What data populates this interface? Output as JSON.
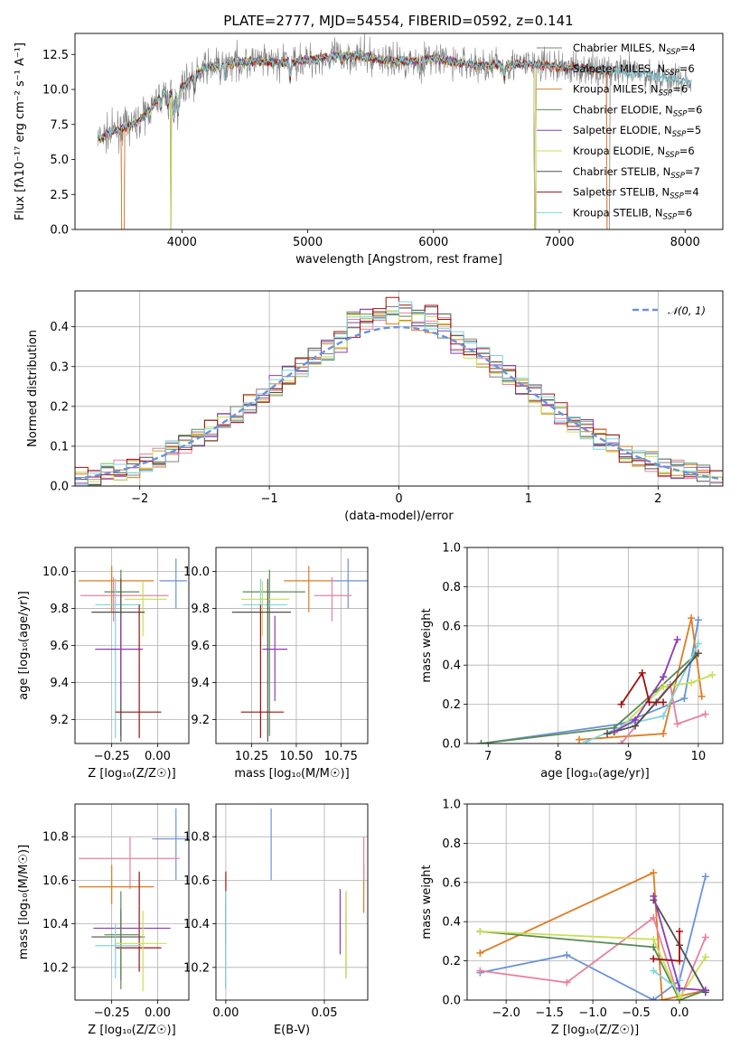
{
  "figure": {
    "title": "PLATE=2777, MJD=54554, FIBERID=0592, z=0.141"
  },
  "colors": {
    "data": "#808080",
    "chabrier_miles": "#808080",
    "salpeter_miles": "#e8819e",
    "kroupa_miles": "#e07b20",
    "chabrier_elodie": "#5a8a55",
    "salpeter_elodie": "#8e3bb5",
    "kroupa_elodie": "#c8e050",
    "chabrier_stelib": "#505050",
    "salpeter_stelib": "#a01010",
    "kroupa_stelib": "#7fd4e0",
    "normal": "#6a93d8"
  },
  "models": [
    {
      "name": "Chabrier MILES",
      "nssp": "4",
      "color": "#808080"
    },
    {
      "name": "Salpeter MILES",
      "nssp": "6",
      "color": "#e8819e"
    },
    {
      "name": "Kroupa MILES",
      "nssp": "6",
      "color": "#e07b20"
    },
    {
      "name": "Chabrier ELODIE",
      "nssp": "6",
      "color": "#5a8a55"
    },
    {
      "name": "Salpeter ELODIE",
      "nssp": "5",
      "color": "#8e3bb5"
    },
    {
      "name": "Kroupa ELODIE",
      "nssp": "6",
      "color": "#c8e050"
    },
    {
      "name": "Chabrier STELIB",
      "nssp": "7",
      "color": "#505050"
    },
    {
      "name": "Salpeter STELIB",
      "nssp": "4",
      "color": "#a01010"
    },
    {
      "name": "Kroupa STELIB",
      "nssp": "6",
      "color": "#7fd4e0"
    }
  ],
  "chart_data": [
    {
      "id": "spectrum",
      "type": "line",
      "xlabel": "wavelength [Angstrom, rest frame]",
      "ylabel": "Flux [fλ10⁻¹⁷ erg cm⁻² s⁻¹ A⁻¹]",
      "xlim": [
        3150,
        8300
      ],
      "ylim": [
        0,
        14
      ],
      "xticks": [
        "4000",
        "5000",
        "6000",
        "7000",
        "8000"
      ],
      "yticks": [
        "0.0",
        "2.5",
        "5.0",
        "7.5",
        "10.0",
        "12.5"
      ],
      "grid": false,
      "legend": "right",
      "continuum_anchors": [
        [
          3350,
          6.5
        ],
        [
          3450,
          7.0
        ],
        [
          3550,
          7.3
        ],
        [
          3650,
          7.7
        ],
        [
          3750,
          8.6
        ],
        [
          3850,
          9.8
        ],
        [
          3950,
          9.6
        ],
        [
          4050,
          10.6
        ],
        [
          4200,
          11.6
        ],
        [
          4400,
          11.9
        ],
        [
          4600,
          12.0
        ],
        [
          4800,
          11.9
        ],
        [
          5000,
          12.1
        ],
        [
          5200,
          12.4
        ],
        [
          5400,
          12.4
        ],
        [
          5600,
          12.1
        ],
        [
          5800,
          12.0
        ],
        [
          6000,
          12.2
        ],
        [
          6200,
          11.9
        ],
        [
          6400,
          11.7
        ],
        [
          6600,
          11.8
        ],
        [
          6800,
          11.8
        ],
        [
          7000,
          11.6
        ],
        [
          7200,
          11.5
        ],
        [
          7400,
          11.3
        ],
        [
          7600,
          11.2
        ],
        [
          7800,
          10.9
        ],
        [
          8000,
          10.6
        ],
        [
          8050,
          10.5
        ]
      ],
      "model_ends": [
        8050,
        7380,
        7400,
        7400,
        7400,
        7400,
        7400,
        7400,
        8050
      ],
      "model_drops": [
        [
          3520,
          3540,
          6800,
          6810,
          7380,
          7400
        ],
        [
          3520,
          3540,
          6800,
          6810,
          7380,
          7400
        ],
        [
          3520,
          3540,
          6800,
          6810,
          7380,
          7400
        ],
        [
          3910,
          3915,
          6800,
          6810
        ],
        [
          3910,
          3915,
          6800,
          6810
        ],
        [
          3910,
          3915,
          6800,
          6810
        ],
        [],
        [],
        []
      ]
    },
    {
      "id": "residuals",
      "type": "histogram",
      "xlabel": "(data-model)/error",
      "ylabel": "Normed distribution",
      "xlim": [
        -2.5,
        2.5
      ],
      "ylim": [
        0,
        0.49
      ],
      "xticks": [
        "−2",
        "−1",
        "0",
        "1",
        "2"
      ],
      "yticks": [
        "0.0",
        "0.1",
        "0.2",
        "0.3",
        "0.4"
      ],
      "grid": true,
      "bin_width": 0.1,
      "legend": "top-right",
      "normal_label": "𝒩(0, 1)"
    },
    {
      "id": "age_vs_Z",
      "type": "errorbar",
      "xlabel": "Z [log₁₀(Z/Z☉)]",
      "ylabel": "age  [log₁₀(age/yr)]",
      "xlim": [
        -0.45,
        0.17
      ],
      "ylim": [
        9.07,
        10.13
      ],
      "xticks": [
        "−0.25",
        "0.00"
      ],
      "yticks": [
        "9.2",
        "9.4",
        "9.6",
        "9.8",
        "10.0"
      ],
      "points": [
        {
          "c": "#6a93d8",
          "x": 0.1,
          "xe": [
            0.09,
            0.06
          ],
          "y": 9.95,
          "ye": [
            0.15,
            0.12
          ]
        },
        {
          "c": "#e07b20",
          "x": -0.25,
          "xe": [
            0.18,
            0.23
          ],
          "y": 9.95,
          "ye": [
            0.17,
            0.08
          ]
        },
        {
          "c": "#e8819e",
          "x": -0.24,
          "xe": [
            0.18,
            0.3
          ],
          "y": 9.87,
          "ye": [
            0.14,
            0.1
          ]
        },
        {
          "c": "#5a8a55",
          "x": -0.2,
          "xe": [
            0.09,
            0.1
          ],
          "y": 9.89,
          "ye": [
            0.78,
            0.12
          ]
        },
        {
          "c": "#c8e050",
          "x": -0.08,
          "xe": [
            0.1,
            0.13
          ],
          "y": 9.85,
          "ye": [
            0.2,
            0.1
          ]
        },
        {
          "c": "#7fd4e0",
          "x": -0.23,
          "xe": [
            0.11,
            0.14
          ],
          "y": 9.82,
          "ye": [
            0.72,
            0.14
          ]
        },
        {
          "c": "#505050",
          "x": -0.2,
          "xe": [
            0.16,
            0.13
          ],
          "y": 9.78,
          "ye": [
            0.7,
            0.18
          ]
        },
        {
          "c": "#8e3bb5",
          "x": -0.2,
          "xe": [
            0.14,
            0.12
          ],
          "y": 9.58,
          "ye": [
            0.28,
            0.18
          ]
        },
        {
          "c": "#a01010",
          "x": -0.1,
          "xe": [
            0.13,
            0.12
          ],
          "y": 9.24,
          "ye": [
            0.14,
            0.58
          ]
        }
      ]
    },
    {
      "id": "age_vs_mass",
      "type": "errorbar",
      "xlabel": "mass [log₁₀(M/M☉)]",
      "ylabel": "",
      "xlim": [
        10.05,
        10.9
      ],
      "ylim": [
        9.07,
        10.13
      ],
      "xticks": [
        "10.25",
        "10.50",
        "10.75"
      ],
      "yticks": [
        "9.2",
        "9.4",
        "9.6",
        "9.8",
        "10.0"
      ],
      "points": [
        {
          "c": "#6a93d8",
          "x": 10.79,
          "xe": [
            0.1,
            0.13
          ],
          "y": 9.95,
          "ye": [
            0.15,
            0.12
          ]
        },
        {
          "c": "#e07b20",
          "x": 10.57,
          "xe": [
            0.14,
            0.13
          ],
          "y": 9.95,
          "ye": [
            0.17,
            0.08
          ]
        },
        {
          "c": "#e8819e",
          "x": 10.7,
          "xe": [
            0.1,
            0.11
          ],
          "y": 9.87,
          "ye": [
            0.14,
            0.1
          ]
        },
        {
          "c": "#5a8a55",
          "x": 10.35,
          "xe": [
            0.15,
            0.2
          ],
          "y": 9.89,
          "ye": [
            0.78,
            0.12
          ]
        },
        {
          "c": "#c8e050",
          "x": 10.31,
          "xe": [
            0.12,
            0.15
          ],
          "y": 9.85,
          "ye": [
            0.2,
            0.1
          ]
        },
        {
          "c": "#7fd4e0",
          "x": 10.3,
          "xe": [
            0.1,
            0.15
          ],
          "y": 9.82,
          "ye": [
            0.72,
            0.14
          ]
        },
        {
          "c": "#505050",
          "x": 10.34,
          "xe": [
            0.2,
            0.13
          ],
          "y": 9.78,
          "ye": [
            0.7,
            0.18
          ]
        },
        {
          "c": "#8e3bb5",
          "x": 10.38,
          "xe": [
            0.07,
            0.07
          ],
          "y": 9.58,
          "ye": [
            0.28,
            0.18
          ]
        },
        {
          "c": "#a01010",
          "x": 10.3,
          "xe": [
            0.11,
            0.13
          ],
          "y": 9.24,
          "ye": [
            0.14,
            0.58
          ]
        }
      ]
    },
    {
      "id": "weight_vs_age",
      "type": "line",
      "xlabel": "age  [log₁₀(age/yr)]",
      "ylabel": "mass weight",
      "xlim": [
        6.7,
        10.35
      ],
      "ylim": [
        0,
        1
      ],
      "xticks": [
        "7",
        "8",
        "9",
        "10"
      ],
      "yticks": [
        "0.0",
        "0.2",
        "0.4",
        "0.6",
        "0.8",
        "1.0"
      ],
      "grid": true,
      "series": [
        {
          "c": "#6a93d8",
          "x": [
            6.9,
            8.9,
            9.8,
            10.0
          ],
          "y": [
            0.0,
            0.1,
            0.23,
            0.63
          ]
        },
        {
          "c": "#e07b20",
          "x": [
            8.3,
            9.5,
            9.9,
            10.05
          ],
          "y": [
            0.02,
            0.05,
            0.64,
            0.24
          ]
        },
        {
          "c": "#e8819e",
          "x": [
            8.9,
            9.6,
            9.7,
            10.1
          ],
          "y": [
            0.0,
            0.3,
            0.1,
            0.15
          ]
        },
        {
          "c": "#5a8a55",
          "x": [
            6.9,
            8.8,
            9.4,
            9.95
          ],
          "y": [
            0.0,
            0.08,
            0.27,
            0.45
          ]
        },
        {
          "c": "#c8e050",
          "x": [
            8.8,
            9.5,
            9.9,
            10.2
          ],
          "y": [
            0.05,
            0.29,
            0.31,
            0.35
          ]
        },
        {
          "c": "#7fd4e0",
          "x": [
            8.4,
            9.0,
            9.5,
            10.0
          ],
          "y": [
            0.01,
            0.1,
            0.14,
            0.51
          ]
        },
        {
          "c": "#505050",
          "x": [
            8.7,
            9.1,
            9.4,
            10.0
          ],
          "y": [
            0.05,
            0.09,
            0.21,
            0.46
          ]
        },
        {
          "c": "#8e3bb5",
          "x": [
            8.8,
            9.1,
            9.5,
            9.7
          ],
          "y": [
            0.06,
            0.12,
            0.34,
            0.53
          ]
        },
        {
          "c": "#a01010",
          "x": [
            8.9,
            9.2,
            9.3,
            9.5
          ],
          "y": [
            0.2,
            0.36,
            0.21,
            0.21
          ]
        }
      ]
    },
    {
      "id": "mass_vs_Z",
      "type": "errorbar",
      "xlabel": "Z [log₁₀(Z/Z☉)]",
      "ylabel": "mass [log₁₀(M/M☉)]",
      "xlim": [
        -0.45,
        0.17
      ],
      "ylim": [
        10.05,
        10.95
      ],
      "xticks": [
        "−0.25",
        "0.00"
      ],
      "yticks": [
        "10.2",
        "10.4",
        "10.6",
        "10.8"
      ],
      "points": [
        {
          "c": "#6a93d8",
          "x": 0.1,
          "xe": [
            0.13,
            0.16
          ],
          "y": 10.79,
          "ye": [
            0.19,
            0.14
          ]
        },
        {
          "c": "#e8819e",
          "x": -0.15,
          "xe": [
            0.28,
            0.27
          ],
          "y": 10.7,
          "ye": [
            0.14,
            0.1
          ]
        },
        {
          "c": "#e07b20",
          "x": -0.25,
          "xe": [
            0.18,
            0.23
          ],
          "y": 10.57,
          "ye": [
            0.08,
            0.1
          ]
        },
        {
          "c": "#a01010",
          "x": -0.1,
          "xe": [
            0.13,
            0.12
          ],
          "y": 10.29,
          "ye": [
            0.11,
            0.35
          ]
        },
        {
          "c": "#8e3bb5",
          "x": -0.2,
          "xe": [
            0.15,
            0.27
          ],
          "y": 10.38,
          "ye": [
            0.07,
            0.07
          ]
        },
        {
          "c": "#505050",
          "x": -0.2,
          "xe": [
            0.16,
            0.13
          ],
          "y": 10.34,
          "ye": [
            0.2,
            0.13
          ]
        },
        {
          "c": "#5a8a55",
          "x": -0.2,
          "xe": [
            0.09,
            0.1
          ],
          "y": 10.35,
          "ye": [
            0.25,
            0.2
          ]
        },
        {
          "c": "#7fd4e0",
          "x": -0.23,
          "xe": [
            0.11,
            0.14
          ],
          "y": 10.3,
          "ye": [
            0.15,
            0.1
          ]
        },
        {
          "c": "#c8e050",
          "x": -0.08,
          "xe": [
            0.15,
            0.13
          ],
          "y": 10.31,
          "ye": [
            0.22,
            0.15
          ]
        }
      ]
    },
    {
      "id": "mass_vs_ebv",
      "type": "errorbar",
      "xlabel": "E(B-V)",
      "ylabel": "",
      "xlim": [
        -0.005,
        0.072
      ],
      "ylim": [
        10.05,
        10.95
      ],
      "xticks": [
        "0.00",
        "0.05"
      ],
      "yticks": [
        "10.2",
        "10.4",
        "10.6",
        "10.8"
      ],
      "points": [
        {
          "c": "#6a93d8",
          "x": 0.023,
          "xe": [
            0,
            0
          ],
          "y": 10.76,
          "ye": [
            0.16,
            0.17
          ]
        },
        {
          "c": "#e07b20",
          "x": 0.07,
          "xe": [
            0,
            0
          ],
          "y": 10.57,
          "ye": [
            0.12,
            0.1
          ]
        },
        {
          "c": "#e8819e",
          "x": 0.07,
          "xe": [
            0,
            0
          ],
          "y": 10.7,
          "ye": [
            0.1,
            0.1
          ]
        },
        {
          "c": "#a01010",
          "x": 0.0,
          "xe": [
            0,
            0
          ],
          "y": 10.5,
          "ye": [
            0.2,
            0.14
          ]
        },
        {
          "c": "#505050",
          "x": 0.0,
          "xe": [
            0,
            0
          ],
          "y": 10.3,
          "ye": [
            0.2,
            0.2
          ]
        },
        {
          "c": "#7fd4e0",
          "x": 0.0,
          "xe": [
            0,
            0
          ],
          "y": 10.3,
          "ye": [
            0.2,
            0.25
          ]
        },
        {
          "c": "#8e3bb5",
          "x": 0.058,
          "xe": [
            0,
            0
          ],
          "y": 10.41,
          "ye": [
            0.15,
            0.15
          ]
        },
        {
          "c": "#5a8a55",
          "x": 0.061,
          "xe": [
            0,
            0
          ],
          "y": 10.35,
          "ye": [
            0.2,
            0.2
          ]
        },
        {
          "c": "#c8e050",
          "x": 0.061,
          "xe": [
            0,
            0
          ],
          "y": 10.35,
          "ye": [
            0.2,
            0.2
          ]
        }
      ]
    },
    {
      "id": "weight_vs_Z",
      "type": "line",
      "xlabel": "Z [log₁₀(Z/Z☉)]",
      "ylabel": "mass weight",
      "xlim": [
        -2.45,
        0.5
      ],
      "ylim": [
        0,
        1
      ],
      "xticks": [
        "−2.0",
        "−1.5",
        "−1.0",
        "−0.5",
        "0.0"
      ],
      "yticks": [
        "0.0",
        "0.2",
        "0.4",
        "0.6",
        "0.8",
        "1.0"
      ],
      "grid": true,
      "series": [
        {
          "c": "#6a93d8",
          "x": [
            -2.3,
            -1.3,
            -0.3,
            0.0,
            0.3
          ],
          "y": [
            0.14,
            0.23,
            0.0,
            0.1,
            0.63
          ]
        },
        {
          "c": "#e07b20",
          "x": [
            -2.3,
            -0.3,
            -0.2,
            0.3
          ],
          "y": [
            0.24,
            0.65,
            0.0,
            0.05
          ]
        },
        {
          "c": "#e8819e",
          "x": [
            -2.3,
            -1.3,
            -0.3,
            0.0,
            0.3
          ],
          "y": [
            0.15,
            0.09,
            0.42,
            0.0,
            0.32
          ]
        },
        {
          "c": "#5a8a55",
          "x": [
            -2.3,
            -0.3,
            0.0,
            0.3
          ],
          "y": [
            0.35,
            0.27,
            0.0,
            0.05
          ]
        },
        {
          "c": "#c8e050",
          "x": [
            -2.3,
            -0.3,
            0.0,
            0.3
          ],
          "y": [
            0.35,
            0.31,
            0.01,
            0.22
          ]
        },
        {
          "c": "#7fd4e0",
          "x": [
            -0.3,
            0.0,
            0.0
          ],
          "y": [
            0.15,
            0.05,
            0.1
          ]
        },
        {
          "c": "#505050",
          "x": [
            -0.3,
            0.0,
            0.3
          ],
          "y": [
            0.51,
            0.28,
            0.04
          ]
        },
        {
          "c": "#8e3bb5",
          "x": [
            -0.3,
            0.0,
            0.3
          ],
          "y": [
            0.53,
            0.06,
            0.05
          ]
        },
        {
          "c": "#a01010",
          "x": [
            -0.3,
            0.0,
            0.0
          ],
          "y": [
            0.21,
            0.2,
            0.35
          ]
        }
      ]
    }
  ]
}
